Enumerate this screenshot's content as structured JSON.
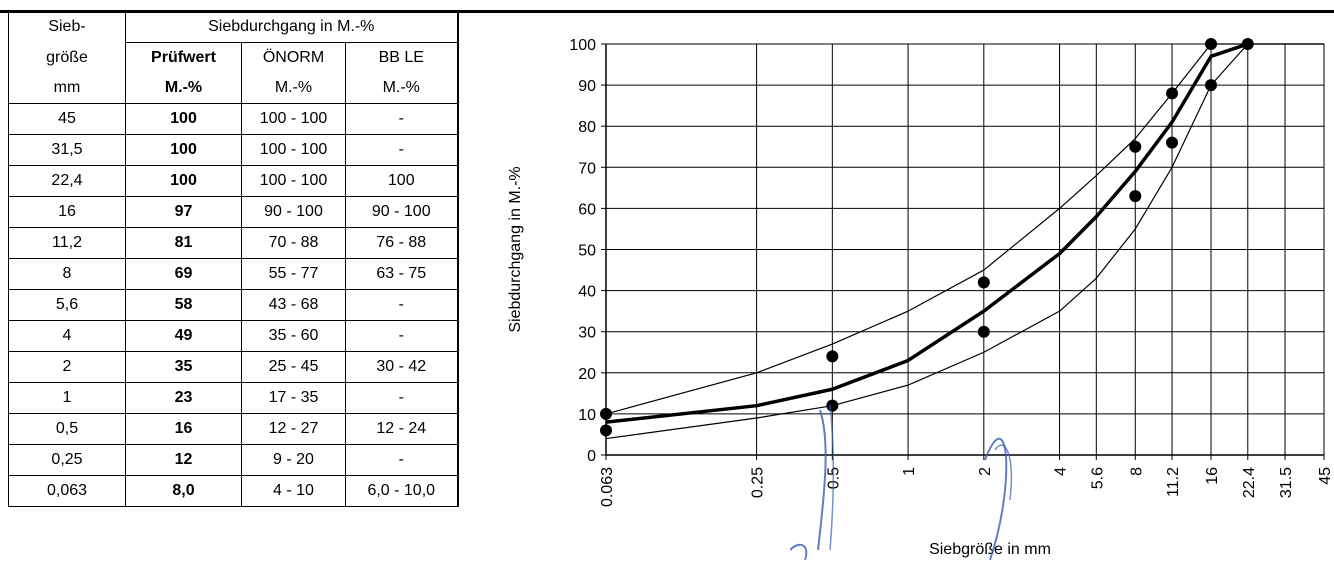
{
  "table": {
    "header": {
      "col1_line1": "Sieb-",
      "col1_line2": "größe",
      "col1_line3": "mm",
      "group": "Siebdurchgang in M.-%",
      "sub_titles": [
        "Prüfwert",
        "ÖNORM",
        "BB LE"
      ],
      "sub_units": [
        "M.-%",
        "M.-%",
        "M.-%"
      ]
    },
    "rows": [
      {
        "size": "45",
        "value": "100",
        "onorm": "100 - 100",
        "bble": "-"
      },
      {
        "size": "31,5",
        "value": "100",
        "onorm": "100 - 100",
        "bble": "-"
      },
      {
        "size": "22,4",
        "value": "100",
        "onorm": "100 - 100",
        "bble": "100"
      },
      {
        "size": "16",
        "value": "97",
        "onorm": "90 - 100",
        "bble": "90 - 100"
      },
      {
        "size": "11,2",
        "value": "81",
        "onorm": "70 - 88",
        "bble": "76 - 88"
      },
      {
        "size": "8",
        "value": "69",
        "onorm": "55 - 77",
        "bble": "63 - 75"
      },
      {
        "size": "5,6",
        "value": "58",
        "onorm": "43 - 68",
        "bble": "-"
      },
      {
        "size": "4",
        "value": "49",
        "onorm": "35 - 60",
        "bble": "-"
      },
      {
        "size": "2",
        "value": "35",
        "onorm": "25 - 45",
        "bble": "30 - 42"
      },
      {
        "size": "1",
        "value": "23",
        "onorm": "17 - 35",
        "bble": "-"
      },
      {
        "size": "0,5",
        "value": "16",
        "onorm": "12 - 27",
        "bble": "12 - 24"
      },
      {
        "size": "0,25",
        "value": "12",
        "onorm": "9 - 20",
        "bble": "-"
      },
      {
        "size": "0,063",
        "value": "8,0",
        "onorm": "4 - 10",
        "bble": "6,0 - 10,0"
      }
    ]
  },
  "chart_data": {
    "type": "line",
    "x_scale": "categorical-sieve",
    "x_ticks": [
      "0.063",
      "0.25",
      "0.5",
      "1",
      "2",
      "4",
      "5.6",
      "8",
      "11.2",
      "16",
      "22.4",
      "31.5",
      "45"
    ],
    "xlabel": "Siebgröße in mm",
    "ylabel": "Siebdurchgang in M.-%",
    "ylim": [
      0,
      100
    ],
    "y_ticks": [
      0,
      10,
      20,
      30,
      40,
      50,
      60,
      70,
      80,
      90,
      100
    ],
    "grid": true,
    "series": [
      {
        "style": "bold",
        "x": [
          "0.063",
          "0.25",
          "0.5",
          "1",
          "2",
          "4",
          "5.6",
          "8",
          "11.2",
          "16",
          "22.4"
        ],
        "y": [
          8,
          12,
          16,
          23,
          35,
          49,
          58,
          69,
          81,
          97,
          100
        ]
      },
      {
        "style": "thin",
        "x": [
          "0.063",
          "0.25",
          "0.5",
          "1",
          "2",
          "4",
          "5.6",
          "8",
          "11.2",
          "16",
          "22.4",
          "31.5",
          "45"
        ],
        "y": [
          10,
          20,
          27,
          35,
          45,
          60,
          68,
          77,
          88,
          100,
          100,
          100,
          100
        ]
      },
      {
        "style": "thin",
        "x": [
          "0.063",
          "0.25",
          "0.5",
          "1",
          "2",
          "4",
          "5.6",
          "8",
          "11.2",
          "16",
          "22.4",
          "31.5",
          "45"
        ],
        "y": [
          4,
          9,
          12,
          17,
          25,
          35,
          43,
          55,
          70,
          90,
          100,
          100,
          100
        ]
      }
    ],
    "points": [
      {
        "x": "0.063",
        "y": 10
      },
      {
        "x": "0.063",
        "y": 6
      },
      {
        "x": "0.5",
        "y": 24
      },
      {
        "x": "0.5",
        "y": 12
      },
      {
        "x": "2",
        "y": 42
      },
      {
        "x": "2",
        "y": 30
      },
      {
        "x": "8",
        "y": 75
      },
      {
        "x": "8",
        "y": 63
      },
      {
        "x": "11.2",
        "y": 88
      },
      {
        "x": "11.2",
        "y": 76
      },
      {
        "x": "16",
        "y": 100
      },
      {
        "x": "16",
        "y": 90
      },
      {
        "x": "22.4",
        "y": 100
      }
    ]
  }
}
